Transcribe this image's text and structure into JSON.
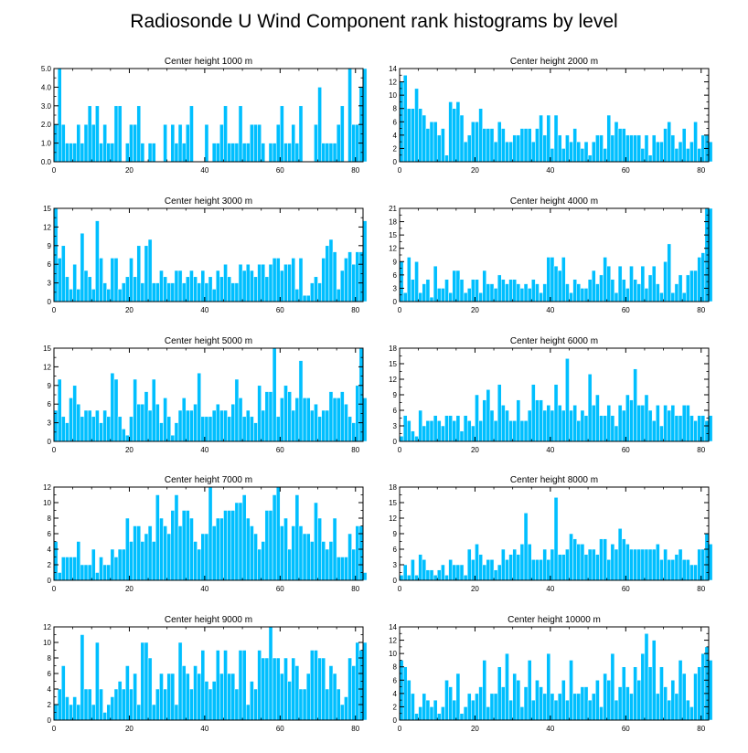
{
  "title": "Radiosonde U Wind Component rank histograms by level",
  "colors": {
    "bar": "#00BFFF",
    "bar_edge": "#ffffff",
    "axis": "#000000",
    "background": "#ffffff"
  },
  "chart_data": [
    {
      "type": "bar",
      "title": "Center height 1000 m",
      "xlim": [
        0,
        82
      ],
      "xticks": [
        0,
        20,
        40,
        60,
        80
      ],
      "ylim": [
        0,
        5
      ],
      "yticks": [
        0,
        1,
        2,
        3,
        4,
        5
      ],
      "yticklabels": [
        "0.0",
        "1.0",
        "2.0",
        "3.0",
        "4.0",
        "5.0"
      ],
      "values": [
        2,
        5,
        2,
        1,
        1,
        1,
        2,
        1,
        2,
        3,
        2,
        3,
        1,
        2,
        1,
        1,
        3,
        3,
        0,
        1,
        2,
        2,
        3,
        1,
        0,
        1,
        1,
        0,
        0,
        2,
        0,
        2,
        1,
        2,
        1,
        2,
        3,
        0,
        0,
        0,
        2,
        0,
        1,
        1,
        2,
        3,
        1,
        1,
        1,
        3,
        1,
        1,
        2,
        2,
        2,
        1,
        0,
        1,
        1,
        2,
        3,
        1,
        1,
        2,
        1,
        3,
        0,
        0,
        0,
        2,
        4,
        1,
        1,
        1,
        1,
        2,
        3,
        0,
        5,
        2,
        2,
        4,
        5
      ]
    },
    {
      "type": "bar",
      "title": "Center height 2000 m",
      "xlim": [
        0,
        82
      ],
      "xticks": [
        0,
        20,
        40,
        60,
        80
      ],
      "ylim": [
        0,
        14
      ],
      "yticks": [
        0,
        2,
        4,
        6,
        8,
        10,
        12,
        14
      ],
      "yticklabels": [
        "0",
        "2",
        "4",
        "6",
        "8",
        "10",
        "12",
        "14"
      ],
      "values": [
        12,
        13,
        8,
        8,
        11,
        8,
        7,
        5,
        6,
        6,
        4,
        5,
        1,
        9,
        8,
        9,
        7,
        3,
        4,
        6,
        6,
        8,
        5,
        5,
        5,
        3,
        6,
        5,
        3,
        3,
        4,
        4,
        5,
        5,
        5,
        3,
        5,
        7,
        4,
        7,
        2,
        7,
        4,
        2,
        4,
        3,
        5,
        3,
        2,
        3,
        1,
        3,
        4,
        4,
        2,
        7,
        4,
        6,
        5,
        5,
        4,
        4,
        4,
        4,
        2,
        4,
        1,
        4,
        3,
        3,
        5,
        6,
        4,
        2,
        3,
        5,
        2,
        3,
        6,
        2,
        4,
        4,
        3
      ]
    },
    {
      "type": "bar",
      "title": "Center height 3000 m",
      "xlim": [
        0,
        82
      ],
      "xticks": [
        0,
        20,
        40,
        60,
        80
      ],
      "ylim": [
        0,
        15
      ],
      "yticks": [
        0,
        3,
        6,
        9,
        12,
        15
      ],
      "yticklabels": [
        "0",
        "3",
        "6",
        "9",
        "12",
        "15"
      ],
      "values": [
        15,
        7,
        9,
        4,
        2,
        6,
        2,
        11,
        5,
        4,
        2,
        13,
        7,
        3,
        2,
        7,
        7,
        2,
        3,
        4,
        7,
        4,
        9,
        3,
        9,
        10,
        3,
        3,
        5,
        4,
        3,
        3,
        5,
        5,
        3,
        4,
        5,
        4,
        3,
        5,
        3,
        4,
        2,
        5,
        4,
        6,
        4,
        3,
        3,
        6,
        5,
        6,
        5,
        4,
        6,
        6,
        4,
        6,
        7,
        7,
        5,
        6,
        6,
        7,
        2,
        7,
        1,
        1,
        3,
        4,
        3,
        7,
        9,
        10,
        8,
        2,
        5,
        7,
        8,
        6,
        8,
        8,
        13
      ]
    },
    {
      "type": "bar",
      "title": "Center height 4000 m",
      "xlim": [
        0,
        82
      ],
      "xticks": [
        0,
        20,
        40,
        60,
        80
      ],
      "ylim": [
        0,
        21
      ],
      "yticks": [
        0,
        3,
        6,
        9,
        12,
        15,
        18,
        21
      ],
      "yticklabels": [
        "0",
        "3",
        "6",
        "9",
        "12",
        "15",
        "18",
        "21"
      ],
      "values": [
        9,
        2,
        10,
        5,
        9,
        2,
        4,
        5,
        1,
        8,
        3,
        3,
        5,
        2,
        7,
        7,
        5,
        2,
        3,
        5,
        5,
        2,
        7,
        4,
        4,
        3,
        6,
        5,
        4,
        5,
        5,
        4,
        3,
        4,
        3,
        5,
        4,
        2,
        4,
        10,
        10,
        8,
        7,
        10,
        4,
        2,
        5,
        4,
        3,
        3,
        5,
        7,
        4,
        6,
        10,
        8,
        5,
        2,
        8,
        5,
        3,
        8,
        5,
        4,
        8,
        3,
        6,
        8,
        4,
        2,
        9,
        13,
        2,
        4,
        6,
        2,
        6,
        7,
        7,
        10,
        11,
        21,
        21
      ]
    },
    {
      "type": "bar",
      "title": "Center height 5000 m",
      "xlim": [
        0,
        82
      ],
      "xticks": [
        0,
        20,
        40,
        60,
        80
      ],
      "ylim": [
        0,
        15
      ],
      "yticks": [
        0,
        3,
        6,
        9,
        12,
        15
      ],
      "yticklabels": [
        "0",
        "3",
        "6",
        "9",
        "12",
        "15"
      ],
      "values": [
        5,
        10,
        4,
        3,
        7,
        9,
        6,
        4,
        5,
        5,
        4,
        5,
        3,
        5,
        4,
        11,
        10,
        4,
        2,
        1,
        4,
        10,
        6,
        6,
        8,
        5,
        10,
        6,
        3,
        7,
        4,
        1,
        3,
        5,
        7,
        5,
        5,
        6,
        11,
        4,
        4,
        4,
        5,
        6,
        5,
        5,
        4,
        6,
        10,
        7,
        4,
        5,
        4,
        3,
        9,
        5,
        8,
        8,
        15,
        4,
        7,
        9,
        8,
        5,
        7,
        13,
        7,
        7,
        5,
        6,
        4,
        5,
        5,
        8,
        7,
        7,
        8,
        6,
        4,
        3,
        9,
        15,
        7
      ]
    },
    {
      "type": "bar",
      "title": "Center height 6000 m",
      "xlim": [
        0,
        82
      ],
      "xticks": [
        0,
        20,
        40,
        60,
        80
      ],
      "ylim": [
        0,
        18
      ],
      "yticks": [
        0,
        3,
        6,
        9,
        12,
        15,
        18
      ],
      "yticklabels": [
        "0",
        "3",
        "6",
        "9",
        "12",
        "15",
        "18"
      ],
      "values": [
        1,
        5,
        4,
        2,
        1,
        6,
        3,
        4,
        4,
        5,
        4,
        3,
        5,
        5,
        4,
        5,
        2,
        5,
        4,
        3,
        9,
        4,
        8,
        10,
        6,
        4,
        11,
        7,
        6,
        4,
        4,
        8,
        4,
        4,
        6,
        11,
        8,
        8,
        6,
        7,
        6,
        11,
        7,
        6,
        16,
        6,
        7,
        4,
        6,
        5,
        13,
        7,
        9,
        5,
        5,
        7,
        5,
        3,
        7,
        6,
        9,
        8,
        14,
        7,
        7,
        9,
        6,
        4,
        7,
        3,
        7,
        6,
        7,
        5,
        5,
        7,
        7,
        5,
        4,
        5,
        5,
        4,
        5
      ]
    },
    {
      "type": "bar",
      "title": "Center height 7000 m",
      "xlim": [
        0,
        82
      ],
      "xticks": [
        0,
        20,
        40,
        60,
        80
      ],
      "ylim": [
        0,
        12
      ],
      "yticks": [
        0,
        2,
        4,
        6,
        8,
        10,
        12
      ],
      "yticklabels": [
        "0",
        "2",
        "4",
        "6",
        "8",
        "10",
        "12"
      ],
      "values": [
        5,
        1,
        3,
        3,
        3,
        3,
        5,
        2,
        2,
        2,
        4,
        1,
        3,
        2,
        2,
        4,
        3,
        4,
        4,
        8,
        5,
        7,
        7,
        5,
        6,
        7,
        5,
        11,
        8,
        7,
        6,
        9,
        11,
        7,
        9,
        9,
        8,
        5,
        4,
        6,
        6,
        12,
        7,
        8,
        8,
        9,
        9,
        9,
        10,
        10,
        11,
        8,
        7,
        6,
        4,
        5,
        9,
        9,
        11,
        12,
        7,
        8,
        4,
        7,
        11,
        7,
        6,
        6,
        5,
        10,
        8,
        5,
        4,
        5,
        8,
        3,
        3,
        3,
        6,
        4,
        7,
        7,
        1
      ]
    },
    {
      "type": "bar",
      "title": "Center height 8000 m",
      "xlim": [
        0,
        82
      ],
      "xticks": [
        0,
        20,
        40,
        60,
        80
      ],
      "ylim": [
        0,
        18
      ],
      "yticks": [
        0,
        3,
        6,
        9,
        12,
        15,
        18
      ],
      "yticklabels": [
        "0",
        "3",
        "6",
        "9",
        "12",
        "15",
        "18"
      ],
      "values": [
        1,
        3,
        1,
        4,
        1,
        5,
        4,
        2,
        2,
        1,
        2,
        3,
        1,
        4,
        3,
        3,
        3,
        1,
        6,
        4,
        7,
        5,
        3,
        4,
        4,
        2,
        3,
        6,
        4,
        5,
        6,
        5,
        7,
        13,
        7,
        4,
        4,
        4,
        6,
        4,
        6,
        16,
        5,
        5,
        6,
        9,
        8,
        7,
        7,
        5,
        6,
        6,
        5,
        8,
        8,
        4,
        7,
        6,
        10,
        8,
        7,
        6,
        6,
        6,
        6,
        6,
        6,
        6,
        7,
        4,
        6,
        4,
        4,
        5,
        6,
        4,
        4,
        3,
        3,
        6,
        6,
        9,
        7
      ]
    },
    {
      "type": "bar",
      "title": "Center height 9000 m",
      "xlim": [
        0,
        82
      ],
      "xticks": [
        0,
        20,
        40,
        60,
        80
      ],
      "ylim": [
        0,
        12
      ],
      "yticks": [
        0,
        2,
        4,
        6,
        8,
        10,
        12
      ],
      "yticklabels": [
        "0",
        "2",
        "4",
        "6",
        "8",
        "10",
        "12"
      ],
      "values": [
        2,
        4,
        7,
        3,
        2,
        3,
        2,
        11,
        4,
        4,
        2,
        10,
        4,
        1,
        2,
        3,
        4,
        5,
        4,
        7,
        4,
        6,
        2,
        10,
        10,
        8,
        2,
        4,
        6,
        4,
        6,
        6,
        2,
        10,
        7,
        6,
        4,
        7,
        6,
        9,
        5,
        4,
        5,
        9,
        6,
        9,
        6,
        6,
        4,
        9,
        9,
        2,
        5,
        4,
        9,
        8,
        8,
        12,
        8,
        8,
        6,
        8,
        5,
        8,
        7,
        4,
        4,
        6,
        9,
        9,
        8,
        8,
        4,
        7,
        6,
        4,
        2,
        3,
        8,
        7,
        10,
        9,
        10
      ]
    },
    {
      "type": "bar",
      "title": "Center height 10000 m",
      "xlim": [
        0,
        82
      ],
      "xticks": [
        0,
        20,
        40,
        60,
        80
      ],
      "ylim": [
        0,
        14
      ],
      "yticks": [
        0,
        2,
        4,
        6,
        8,
        10,
        12,
        14
      ],
      "yticklabels": [
        "0",
        "2",
        "4",
        "6",
        "8",
        "10",
        "12",
        "14"
      ],
      "values": [
        9,
        8,
        6,
        4,
        1,
        2,
        4,
        3,
        2,
        3,
        1,
        2,
        6,
        5,
        3,
        7,
        1,
        2,
        4,
        3,
        4,
        5,
        9,
        2,
        4,
        4,
        8,
        5,
        10,
        3,
        7,
        6,
        2,
        5,
        9,
        3,
        6,
        5,
        4,
        10,
        4,
        3,
        4,
        6,
        3,
        9,
        4,
        4,
        5,
        5,
        3,
        4,
        6,
        2,
        7,
        6,
        10,
        3,
        5,
        8,
        5,
        4,
        8,
        6,
        10,
        13,
        8,
        12,
        4,
        8,
        5,
        3,
        6,
        4,
        9,
        7,
        3,
        2,
        7,
        8,
        10,
        11,
        9
      ]
    }
  ]
}
